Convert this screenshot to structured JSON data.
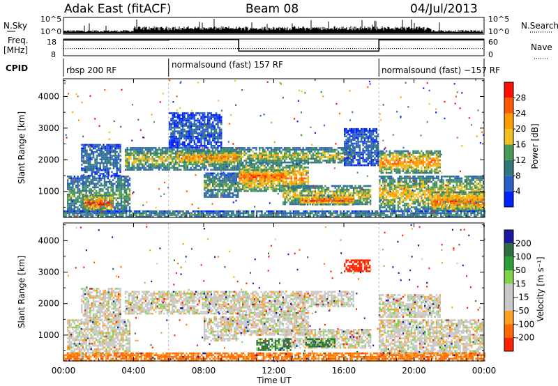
{
  "header": {
    "station": "Adak East (fitACF)",
    "beam": "Beam 08",
    "date": "04/Jul/2013"
  },
  "top_panels": {
    "nsky_label": "N.Sky",
    "nsearch_label": "N.Search",
    "nsky_ticks": [
      "10^5",
      "10^0"
    ],
    "freq_label_line1": "Freq.",
    "freq_label_line2": "[MHz]",
    "freq_ticks": [
      "18",
      "8"
    ],
    "nave_label": "Nave",
    "nave_ticks": [
      "60",
      "0"
    ],
    "cpid_label": "CPID",
    "cpid_segments": [
      {
        "label": "rbsp 200 RF",
        "start_h": 0,
        "end_h": 6
      },
      {
        "label": "normalsound (fast) 157 RF",
        "start_h": 6,
        "end_h": 18
      },
      {
        "label": "normalsound (fast) −157 RF",
        "start_h": 18,
        "end_h": 24
      }
    ]
  },
  "colors": {
    "power_scale": [
      "#0020ff",
      "#2a5fc8",
      "#33777a",
      "#4a9a5a",
      "#f0c020",
      "#ff9a00",
      "#ff5a00",
      "#ff1000"
    ],
    "velocity_scale": [
      "#1a1aa0",
      "#2d6e3c",
      "#2e9e3a",
      "#7fd34a",
      "#c8c8c8",
      "#c8c8c8",
      "#ffa020",
      "#ff6a00",
      "#ff2000"
    ]
  },
  "chart_data": [
    {
      "type": "line",
      "name": "sky-noise-panel",
      "ylabel": "N.Sky",
      "y2label": "N.Search",
      "yscale": "log",
      "ylim": [
        1,
        100000
      ],
      "yticks": [
        "10^5",
        "10^0"
      ]
    },
    {
      "type": "line",
      "name": "frequency-nave-panel",
      "ylabel": "Freq. [MHz]",
      "y2label": "Nave",
      "ylim": [
        8,
        18
      ],
      "y2lim": [
        0,
        60
      ],
      "series": [
        {
          "name": "Freq.",
          "x": [
            0,
            6,
            6,
            10,
            10,
            18,
            18,
            24
          ],
          "values": [
            17.4,
            17.4,
            17.7,
            17.7,
            10.8,
            10.8,
            17.5,
            17.5
          ]
        },
        {
          "name": "Nave",
          "x": [
            0,
            24
          ],
          "values": [
            26,
            26
          ]
        }
      ]
    },
    {
      "type": "heatmap",
      "name": "power-rti",
      "ylabel": "Slant Range [km]",
      "xlim": [
        0,
        24
      ],
      "ylim": [
        180,
        4560
      ],
      "yticks": [
        1000,
        2000,
        3000,
        4000
      ],
      "colorbar_label": "Power [dB]",
      "colorbar_ticks": [
        4,
        8,
        12,
        16,
        20,
        24,
        28
      ],
      "colorbar_range": [
        0,
        32
      ],
      "regions": [
        {
          "x0": 0.2,
          "x1": 3.8,
          "r0": 300,
          "r1": 1500,
          "level": 14
        },
        {
          "x0": 1.2,
          "x1": 2.8,
          "r0": 400,
          "r1": 900,
          "level": 28
        },
        {
          "x0": 1.0,
          "x1": 3.2,
          "r0": 1500,
          "r1": 2500,
          "level": 10
        },
        {
          "x0": 3.5,
          "x1": 10.0,
          "r0": 1700,
          "r1": 2400,
          "level": 18
        },
        {
          "x0": 6.5,
          "x1": 10.0,
          "r0": 1900,
          "r1": 2300,
          "level": 25
        },
        {
          "x0": 8.0,
          "x1": 10.0,
          "r0": 800,
          "r1": 1600,
          "level": 14
        },
        {
          "x0": 6.0,
          "x1": 9.0,
          "r0": 2400,
          "r1": 3500,
          "level": 7
        },
        {
          "x0": 10.0,
          "x1": 14.0,
          "r0": 1000,
          "r1": 1900,
          "level": 24
        },
        {
          "x0": 10.2,
          "x1": 12.5,
          "r0": 1300,
          "r1": 1700,
          "level": 28
        },
        {
          "x0": 10.0,
          "x1": 16.5,
          "r0": 1900,
          "r1": 2400,
          "level": 18
        },
        {
          "x0": 12.5,
          "x1": 17.5,
          "r0": 600,
          "r1": 1200,
          "level": 20
        },
        {
          "x0": 13.5,
          "x1": 16.5,
          "r0": 600,
          "r1": 900,
          "level": 28
        },
        {
          "x0": 16.0,
          "x1": 18.0,
          "r0": 1800,
          "r1": 3000,
          "level": 8
        },
        {
          "x0": 18.0,
          "x1": 24.0,
          "r0": 400,
          "r1": 1500,
          "level": 20
        },
        {
          "x0": 18.0,
          "x1": 21.5,
          "r0": 1600,
          "r1": 2300,
          "level": 24
        },
        {
          "x0": 21.0,
          "x1": 24.0,
          "r0": 400,
          "r1": 1000,
          "level": 26
        },
        {
          "x0": 0.0,
          "x1": 24.0,
          "r0": 180,
          "r1": 400,
          "level": 12
        }
      ]
    },
    {
      "type": "heatmap",
      "name": "velocity-rti",
      "xlabel": "Time UT",
      "ylabel": "Slant Range [km]",
      "xlim": [
        0,
        24
      ],
      "ylim": [
        180,
        4560
      ],
      "xticks": [
        "00:00",
        "04:00",
        "08:00",
        "12:00",
        "16:00",
        "20:00",
        "00:00"
      ],
      "yticks": [
        1000,
        2000,
        3000,
        4000
      ],
      "colorbar_label": "Velocity [m s⁻¹]",
      "colorbar_ticks": [
        200,
        100,
        50,
        15,
        -15,
        -50,
        -100,
        -200
      ],
      "regions": [
        {
          "x0": 0.2,
          "x1": 3.8,
          "r0": 300,
          "r1": 1500,
          "level": 0
        },
        {
          "x0": 1.0,
          "x1": 3.2,
          "r0": 1500,
          "r1": 2500,
          "level": 0
        },
        {
          "x0": 3.5,
          "x1": 10.0,
          "r0": 1700,
          "r1": 2400,
          "level": 0
        },
        {
          "x0": 8.0,
          "x1": 10.0,
          "r0": 800,
          "r1": 1600,
          "level": 0
        },
        {
          "x0": 10.0,
          "x1": 14.0,
          "r0": 1000,
          "r1": 1900,
          "level": 0
        },
        {
          "x0": 10.0,
          "x1": 16.5,
          "r0": 1900,
          "r1": 2400,
          "level": 0
        },
        {
          "x0": 12.5,
          "x1": 17.5,
          "r0": 600,
          "r1": 1200,
          "level": 0
        },
        {
          "x0": 13.8,
          "x1": 15.5,
          "r0": 650,
          "r1": 900,
          "level": 60
        },
        {
          "x0": 11.0,
          "x1": 13.0,
          "r0": 500,
          "r1": 900,
          "level": 60
        },
        {
          "x0": 18.0,
          "x1": 24.0,
          "r0": 400,
          "r1": 1500,
          "level": 0
        },
        {
          "x0": 18.0,
          "x1": 21.5,
          "r0": 1600,
          "r1": 2300,
          "level": 0
        },
        {
          "x0": 0.0,
          "x1": 24.0,
          "r0": 180,
          "r1": 450,
          "level": -60
        },
        {
          "x0": 16.0,
          "x1": 17.5,
          "r0": 3000,
          "r1": 3400,
          "level": -150
        }
      ]
    }
  ]
}
